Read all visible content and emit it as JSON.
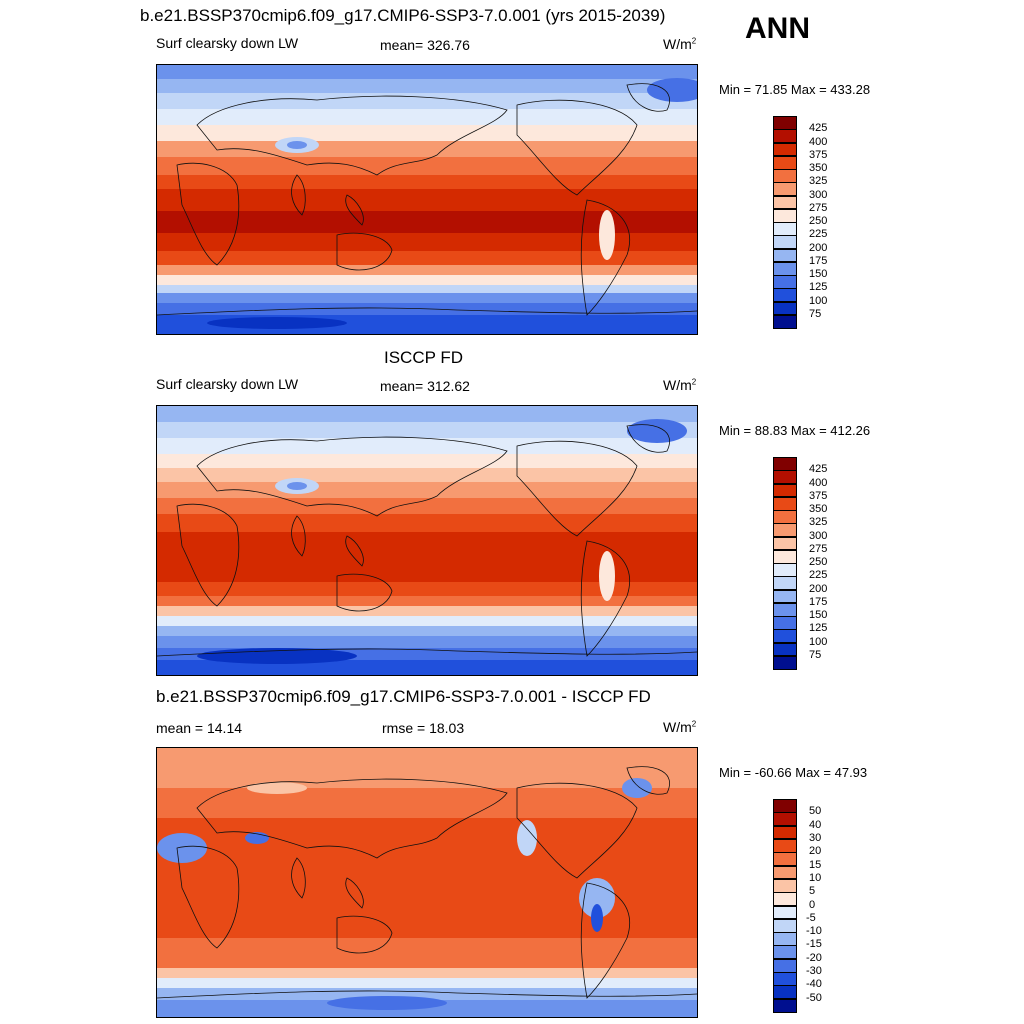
{
  "header": {
    "top_title": "b.e21.BSSP370cmip6.f09_g17.CMIP6-SSP3-7.0.001 (yrs 2015-2039)",
    "season": "ANN"
  },
  "panels": [
    {
      "id": "model",
      "title": "",
      "left_label": "Surf clearsky down LW",
      "center_label": "mean= 326.76",
      "units": "W/m",
      "units_sup": "2",
      "minmax": "Min =  71.85 Max = 433.28"
    },
    {
      "id": "obs",
      "title": "ISCCP FD",
      "left_label": "Surf clearsky down LW",
      "center_label": "mean= 312.62",
      "units": "W/m",
      "units_sup": "2",
      "minmax": "Min =  88.83 Max = 412.26"
    },
    {
      "id": "diff",
      "title": "b.e21.BSSP370cmip6.f09_g17.CMIP6-SSP3-7.0.001 - ISCCP FD",
      "left_label": "mean =  14.14",
      "center_label": "rmse =  18.03",
      "units": "W/m",
      "units_sup": "2",
      "minmax": "Min = -60.66 Max =  47.93"
    }
  ],
  "colorbars": {
    "abs": {
      "ticks": [
        "425",
        "400",
        "375",
        "350",
        "325",
        "300",
        "275",
        "250",
        "225",
        "200",
        "175",
        "150",
        "125",
        "100",
        "75"
      ],
      "colors": [
        "#800000",
        "#b30f00",
        "#d42a00",
        "#e84a16",
        "#f2703f",
        "#f79a70",
        "#fbc4a6",
        "#fde8dc",
        "#e1ecfb",
        "#c1d6f7",
        "#96b6f2",
        "#6b92ec",
        "#4670e5",
        "#2050dc",
        "#0832c2",
        "#000f8f"
      ]
    },
    "diff": {
      "ticks": [
        "50",
        "40",
        "30",
        "20",
        "15",
        "10",
        "5",
        "0",
        "-5",
        "-10",
        "-15",
        "-20",
        "-30",
        "-40",
        "-50"
      ],
      "colors": [
        "#800000",
        "#b30f00",
        "#d42a00",
        "#e84a16",
        "#f2703f",
        "#f79a70",
        "#fbc4a6",
        "#fde8dc",
        "#e1ecfb",
        "#c1d6f7",
        "#96b6f2",
        "#6b92ec",
        "#4670e5",
        "#2050dc",
        "#0832c2",
        "#000f8f"
      ]
    }
  },
  "chart_data": [
    {
      "type": "heatmap",
      "title": "Surf clearsky down LW",
      "subtitle": "mean= 326.76",
      "units": "W/m2",
      "min": 71.85,
      "max": 433.28,
      "mean": 326.76,
      "levels": [
        75,
        100,
        125,
        150,
        175,
        200,
        225,
        250,
        275,
        300,
        325,
        350,
        375,
        400,
        425
      ]
    },
    {
      "type": "heatmap",
      "title": "ISCCP FD",
      "subtitle": "Surf clearsky down LW",
      "units": "W/m2",
      "min": 88.83,
      "max": 412.26,
      "mean": 312.62,
      "levels": [
        75,
        100,
        125,
        150,
        175,
        200,
        225,
        250,
        275,
        300,
        325,
        350,
        375,
        400,
        425
      ]
    },
    {
      "type": "heatmap",
      "title": "b.e21.BSSP370cmip6.f09_g17.CMIP6-SSP3-7.0.001 - ISCCP FD",
      "units": "W/m2",
      "min": -60.66,
      "max": 47.93,
      "mean": 14.14,
      "rmse": 18.03,
      "levels": [
        -50,
        -40,
        -30,
        -20,
        -15,
        -10,
        -5,
        0,
        5,
        10,
        15,
        20,
        30,
        40,
        50
      ]
    }
  ]
}
